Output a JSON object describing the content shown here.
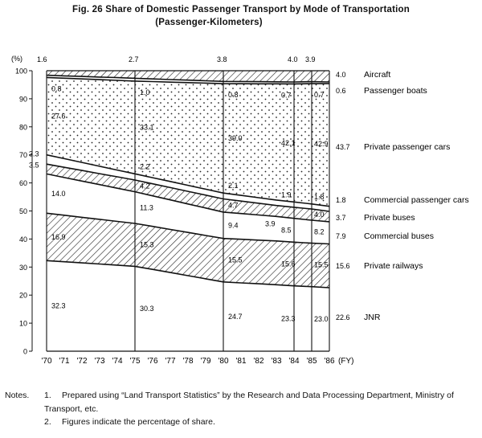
{
  "title": "Fig. 26  Share of Domestic Passenger Transport by Mode of Transportation",
  "subtitle": "(Passenger-Kilometers)",
  "chart_data": {
    "type": "area",
    "stacked": true,
    "ylabel": "(%)",
    "ylim": [
      0,
      100
    ],
    "yticks": [
      0,
      10,
      20,
      30,
      40,
      50,
      60,
      70,
      80,
      90,
      100
    ],
    "x": [
      "'70",
      "'71",
      "'72",
      "'73",
      "'74",
      "'75",
      "'76",
      "'77",
      "'78",
      "'79",
      "'80",
      "'81",
      "'82",
      "'83",
      "'84",
      "'85",
      "'86"
    ],
    "xunit": "(FY)",
    "series_order_bottom_to_top": [
      "JNR",
      "Private railways",
      "Commercial buses",
      "Private buses",
      "Commercial passenger cars",
      "Private passenger cars",
      "Passenger boats",
      "Aircraft"
    ],
    "series": [
      {
        "name": "JNR",
        "pattern": "blank",
        "labels": {
          "'70": 32.3,
          "'75": 30.3,
          "'80": 24.7,
          "'84": 23.3,
          "'85": 23.0,
          "'86": 22.6
        }
      },
      {
        "name": "Private railways",
        "pattern": "hatch",
        "labels": {
          "'70": 16.9,
          "'75": 15.3,
          "'80": 15.5,
          "'84": 15.6,
          "'85": 15.5,
          "'86": 15.6
        }
      },
      {
        "name": "Commercial buses",
        "pattern": "blank",
        "labels": {
          "'70": 14.0,
          "'75": 11.3,
          "'80": 9.4,
          "'84": 8.5,
          "'85": 8.2,
          "'86": 7.9
        }
      },
      {
        "name": "Private buses",
        "pattern": "hatch",
        "labels": {
          "'70": 3.5,
          "'75": 4.2,
          "'80": 4.7,
          "'83": 3.9,
          "'85": 4.0,
          "'86": 3.7
        }
      },
      {
        "name": "Commercial passenger cars",
        "pattern": "blank",
        "labels": {
          "'70": 3.3,
          "'75": 2.2,
          "'80": 2.1,
          "'84": 1.9,
          "'85": 1.8,
          "'86": 1.8
        }
      },
      {
        "name": "Private passenger cars",
        "pattern": "dots",
        "labels": {
          "'70": 27.6,
          "'75": 33.1,
          "'80": 39.0,
          "'84": 42.1,
          "'85": 42.9,
          "'86": 43.7
        }
      },
      {
        "name": "Passenger boats",
        "pattern": "blank",
        "labels": {
          "'70": 0.8,
          "'75": 1.0,
          "'80": 0.8,
          "'84": 0.7,
          "'85": 0.7,
          "'86": 0.6
        }
      },
      {
        "name": "Aircraft",
        "pattern": "hatch",
        "labels": {
          "'70": 1.6,
          "'75": 2.7,
          "'80": 3.8,
          "'84": 4.0,
          "'85": 3.9,
          "'86": 4.0
        }
      }
    ]
  },
  "notes": {
    "head": "Notes.",
    "n1_num": "1.",
    "n1_text": "Prepared using “Land Transport Statistics” by the Research and Data Processing Department, Ministry of Transport, etc.",
    "n2_num": "2.",
    "n2_text": "Figures indicate the percentage of share."
  }
}
